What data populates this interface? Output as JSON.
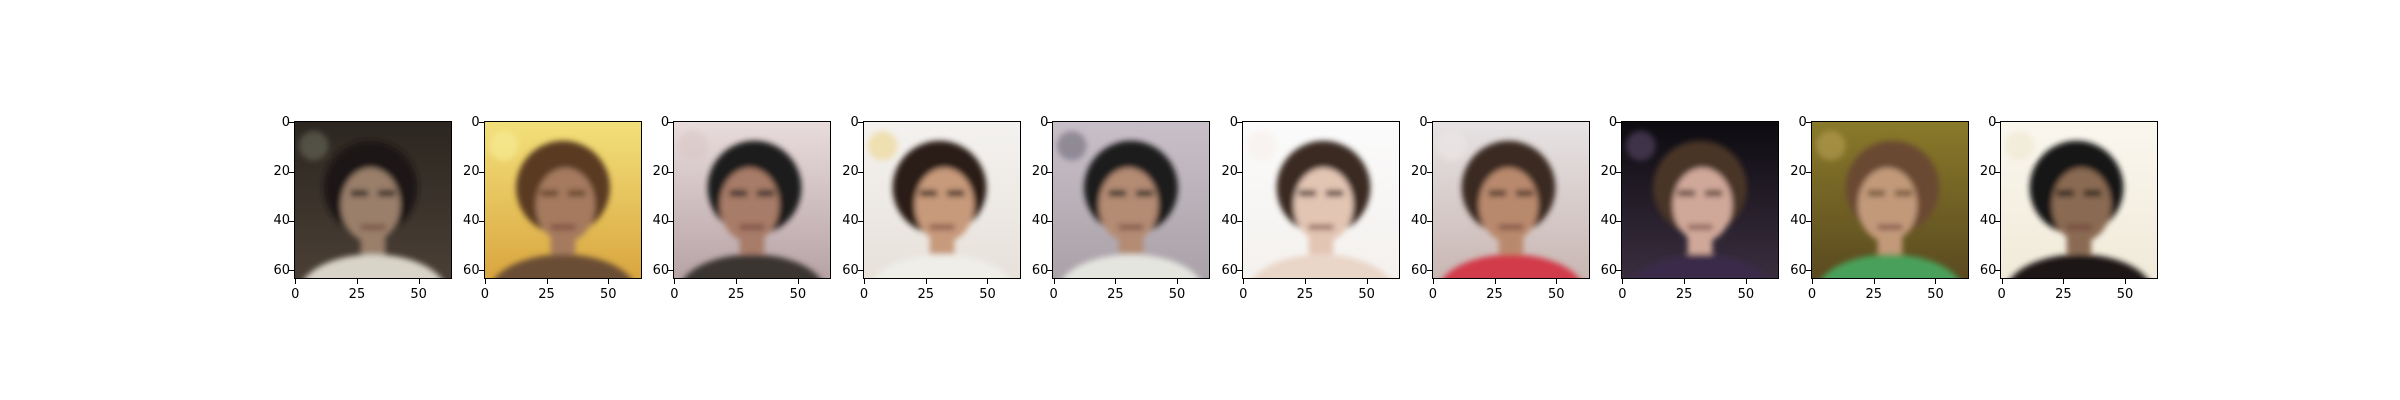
{
  "figure": {
    "image_count": 10,
    "y_ticks": [
      "0",
      "20",
      "40",
      "60"
    ],
    "x_ticks": [
      "0",
      "25",
      "50"
    ],
    "panels": [
      {
        "bg_top": "#2b2620",
        "bg_bottom": "#4a3f35",
        "hair": "#1c1815",
        "skin": "#9a7f6a",
        "shirt": "#d9d4c8",
        "accent": "#6b6b5a"
      },
      {
        "bg_top": "#f3e07a",
        "bg_bottom": "#d9a640",
        "hair": "#5a3a22",
        "skin": "#a57a5e",
        "shirt": "#6a4d36",
        "accent": "#f6ef9a"
      },
      {
        "bg_top": "#e9dcdc",
        "bg_bottom": "#b7a3a6",
        "hair": "#1d1a1a",
        "skin": "#a77c68",
        "shirt": "#3a3533",
        "accent": "#d8c7c7"
      },
      {
        "bg_top": "#f4f2f0",
        "bg_bottom": "#e7e1da",
        "hair": "#2a1d17",
        "skin": "#c79a7c",
        "shirt": "#efeee8",
        "accent": "#ecd68a"
      },
      {
        "bg_top": "#c9bfc9",
        "bg_bottom": "#aaa2a8",
        "hair": "#1a1a1a",
        "skin": "#b48b73",
        "shirt": "#e5e5e0",
        "accent": "#6e6a78"
      },
      {
        "bg_top": "#fbfbfb",
        "bg_bottom": "#f4f1ee",
        "hair": "#3a2a22",
        "skin": "#e3c5b3",
        "shirt": "#ead6c8",
        "accent": "#f6eee9"
      },
      {
        "bg_top": "#e7e3e4",
        "bg_bottom": "#c9b7b3",
        "hair": "#3b2a20",
        "skin": "#b9896d",
        "shirt": "#d23a4a",
        "accent": "#ece7e6"
      },
      {
        "bg_top": "#0d0b10",
        "bg_bottom": "#3a2e3f",
        "hair": "#4a3526",
        "skin": "#d0a89a",
        "shirt": "#3a2a4a",
        "accent": "#5b4a6a"
      },
      {
        "bg_top": "#8a7a2a",
        "bg_bottom": "#5a4a20",
        "hair": "#6a4a30",
        "skin": "#c29a7a",
        "shirt": "#4aa05a",
        "accent": "#b7a052"
      },
      {
        "bg_top": "#faf7ef",
        "bg_bottom": "#f1ead9",
        "hair": "#151412",
        "skin": "#8a6a52",
        "shirt": "#1a1816",
        "accent": "#efe6cf"
      }
    ]
  }
}
